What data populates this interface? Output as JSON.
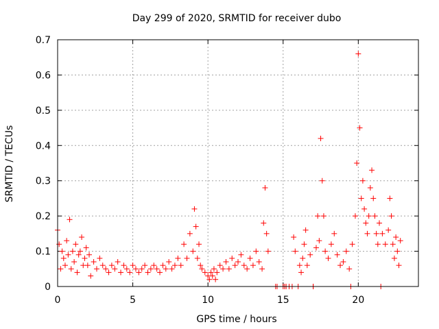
{
  "chart_data": {
    "type": "scatter",
    "title": "Day 299 of 2020, SRMTID for receiver dubo",
    "xlabel": "GPS time / hours",
    "ylabel": "SRMTID / TECUs",
    "xlim": [
      0,
      24
    ],
    "ylim": [
      0,
      0.7
    ],
    "xticks": [
      0,
      5,
      10,
      15,
      20
    ],
    "yticks": [
      0,
      0.1,
      0.2,
      0.3,
      0.4,
      0.5,
      0.6,
      0.7
    ],
    "xtick_labels": [
      "0",
      "5",
      "10",
      "15",
      "20"
    ],
    "ytick_labels": [
      "0",
      "0.1",
      "0.2",
      "0.3",
      "0.4",
      "0.5",
      "0.6",
      "0.7"
    ],
    "grid": true,
    "marker": "+",
    "color": "#ff0000",
    "series": [
      {
        "name": "SRMTID",
        "x": [
          0.0,
          0.1,
          0.2,
          0.3,
          0.4,
          0.5,
          0.6,
          0.7,
          0.8,
          0.9,
          1.0,
          1.1,
          1.2,
          1.3,
          1.4,
          1.5,
          1.6,
          1.7,
          1.8,
          1.9,
          2.0,
          2.1,
          2.2,
          2.4,
          2.6,
          2.8,
          3.0,
          3.2,
          3.4,
          3.6,
          3.8,
          4.0,
          4.2,
          4.4,
          4.6,
          4.8,
          5.0,
          5.2,
          5.4,
          5.6,
          5.8,
          6.0,
          6.2,
          6.4,
          6.6,
          6.8,
          7.0,
          7.2,
          7.4,
          7.6,
          7.8,
          8.0,
          8.2,
          8.4,
          8.6,
          8.8,
          9.0,
          9.1,
          9.2,
          9.3,
          9.4,
          9.5,
          9.6,
          9.8,
          10.0,
          10.1,
          10.2,
          10.3,
          10.4,
          10.5,
          10.6,
          10.8,
          11.0,
          11.2,
          11.4,
          11.6,
          11.8,
          12.0,
          12.2,
          12.4,
          12.6,
          12.8,
          13.0,
          13.2,
          13.4,
          13.6,
          13.7,
          13.8,
          13.9,
          14.0,
          14.5,
          14.6,
          15.0,
          15.2,
          15.4,
          15.6,
          15.7,
          15.8,
          16.0,
          16.1,
          16.2,
          16.3,
          16.4,
          16.5,
          16.6,
          16.8,
          17.0,
          17.2,
          17.3,
          17.4,
          17.5,
          17.6,
          17.7,
          17.8,
          18.0,
          18.2,
          18.4,
          18.6,
          18.8,
          19.0,
          19.2,
          19.4,
          19.6,
          19.8,
          19.9,
          20.0,
          20.1,
          20.2,
          20.3,
          20.4,
          20.5,
          20.6,
          20.7,
          20.8,
          20.9,
          21.0,
          21.1,
          21.2,
          21.3,
          21.4,
          21.6,
          21.8,
          22.0,
          22.1,
          22.2,
          22.3,
          22.4,
          22.5,
          22.6,
          22.7,
          22.8,
          15.1,
          17.0,
          19.5,
          21.5
        ],
        "y": [
          0.16,
          0.12,
          0.05,
          0.1,
          0.08,
          0.06,
          0.13,
          0.09,
          0.19,
          0.05,
          0.1,
          0.07,
          0.12,
          0.04,
          0.09,
          0.1,
          0.14,
          0.06,
          0.08,
          0.11,
          0.06,
          0.09,
          0.03,
          0.07,
          0.05,
          0.08,
          0.06,
          0.05,
          0.04,
          0.06,
          0.05,
          0.07,
          0.04,
          0.06,
          0.05,
          0.04,
          0.06,
          0.05,
          0.04,
          0.05,
          0.06,
          0.04,
          0.05,
          0.06,
          0.05,
          0.04,
          0.06,
          0.05,
          0.07,
          0.05,
          0.06,
          0.08,
          0.06,
          0.12,
          0.08,
          0.15,
          0.1,
          0.22,
          0.17,
          0.08,
          0.12,
          0.06,
          0.05,
          0.04,
          0.03,
          0.02,
          0.04,
          0.03,
          0.05,
          0.02,
          0.04,
          0.06,
          0.05,
          0.07,
          0.05,
          0.08,
          0.06,
          0.07,
          0.09,
          0.06,
          0.05,
          0.08,
          0.06,
          0.1,
          0.07,
          0.05,
          0.18,
          0.28,
          0.15,
          0.1,
          0.0,
          0.0,
          0.0,
          0.0,
          0.0,
          0.0,
          0.14,
          0.1,
          0.0,
          0.06,
          0.04,
          0.08,
          0.12,
          0.16,
          0.06,
          0.09,
          0.0,
          0.11,
          0.2,
          0.13,
          0.42,
          0.3,
          0.2,
          0.1,
          0.08,
          0.12,
          0.15,
          0.09,
          0.06,
          0.07,
          0.1,
          0.05,
          0.12,
          0.2,
          0.35,
          0.66,
          0.45,
          0.25,
          0.3,
          0.22,
          0.18,
          0.15,
          0.2,
          0.28,
          0.33,
          0.25,
          0.2,
          0.15,
          0.12,
          0.18,
          0.15,
          0.12,
          0.16,
          0.25,
          0.2,
          0.12,
          0.08,
          0.14,
          0.1,
          0.06,
          0.13,
          0.0,
          0.0,
          0.0,
          0.0
        ]
      }
    ]
  }
}
